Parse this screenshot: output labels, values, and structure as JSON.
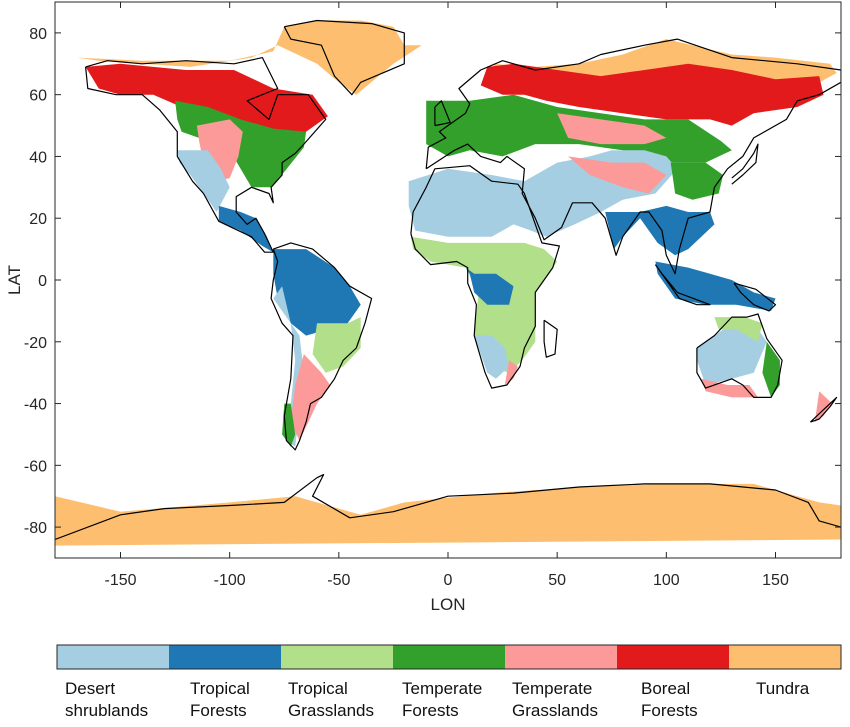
{
  "map": {
    "type": "map",
    "x_axis": {
      "label": "LON",
      "range": [
        -180,
        180
      ],
      "ticks": [
        -150,
        -100,
        -50,
        0,
        50,
        100,
        150
      ]
    },
    "y_axis": {
      "label": "LAT",
      "range": [
        -90,
        90
      ],
      "ticks": [
        -80,
        -60,
        -40,
        -20,
        0,
        20,
        40,
        60,
        80
      ]
    },
    "grid": false,
    "projection": "equirectangular (lon-lat)"
  },
  "legend": {
    "placement": "bottom",
    "items": [
      {
        "label": "Desert shrublands",
        "line1": "Desert",
        "line2": "shrublands",
        "color": "#a6cee3"
      },
      {
        "label": "Tropical Forests",
        "line1": "Tropical",
        "line2": "Forests",
        "color": "#1f78b4"
      },
      {
        "label": "Tropical Grasslands",
        "line1": "Tropical",
        "line2": "Grasslands",
        "color": "#b2df8a"
      },
      {
        "label": "Temperate Forests",
        "line1": "Temperate",
        "line2": "Forests",
        "color": "#33a02c"
      },
      {
        "label": "Temperate Grasslands",
        "line1": "Temperate",
        "line2": "Grasslands",
        "color": "#fb9a99"
      },
      {
        "label": "Boreal Forests",
        "line1": "Boreal",
        "line2": "Forests",
        "color": "#e31a1c"
      },
      {
        "label": "Tundra",
        "line1": "Tundra",
        "line2": "",
        "color": "#fdbf6f"
      }
    ]
  }
}
